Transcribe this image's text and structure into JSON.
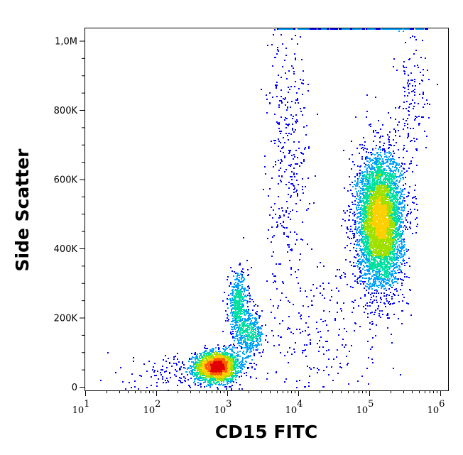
{
  "chart_data": {
    "type": "scatter",
    "subtype": "flow-cytometry density dot plot",
    "xlabel": "CD15 FITC",
    "ylabel": "Side Scatter",
    "x_scale": "log",
    "xlim": [
      10,
      1100000
    ],
    "ylim": [
      0,
      1050000
    ],
    "x_ticks": [
      {
        "value": 10,
        "base": "10",
        "exp": "1"
      },
      {
        "value": 100,
        "base": "10",
        "exp": "2"
      },
      {
        "value": 1000,
        "base": "10",
        "exp": "3"
      },
      {
        "value": 10000,
        "base": "10",
        "exp": "4"
      },
      {
        "value": 100000,
        "base": "10",
        "exp": "5"
      },
      {
        "value": 1000000,
        "base": "10",
        "exp": "6"
      }
    ],
    "y_ticks": [
      {
        "value": 0,
        "label": "0"
      },
      {
        "value": 200000,
        "label": "200K"
      },
      {
        "value": 400000,
        "label": "400K"
      },
      {
        "value": 600000,
        "label": "600K"
      },
      {
        "value": 800000,
        "label": "800K"
      },
      {
        "value": 1000000,
        "label": "1,0M"
      }
    ],
    "grid": false,
    "color_scale": [
      "#0000ff",
      "#00a0ff",
      "#00e0a0",
      "#a0e000",
      "#ffd000",
      "#ff6000",
      "#e00000"
    ],
    "populations": [
      {
        "x_center": 700,
        "y_center": 60000,
        "x_log_sd": 0.15,
        "y_sd": 22000,
        "count": 2400
      },
      {
        "x_center": 1400,
        "y_center": 240000,
        "x_log_sd": 0.07,
        "y_sd": 45000,
        "count": 500
      },
      {
        "x_center": 2000,
        "y_center": 150000,
        "x_log_sd": 0.1,
        "y_sd": 35000,
        "count": 450
      },
      {
        "x_center": 140000,
        "y_center": 480000,
        "x_log_sd": 0.16,
        "y_sd": 95000,
        "count": 5200
      },
      {
        "x_center": 7000,
        "y_center": 700000,
        "x_log_sd": 0.15,
        "y_sd": 200000,
        "count": 350
      },
      {
        "x_center": 400000,
        "y_center": 850000,
        "x_log_sd": 0.12,
        "y_sd": 120000,
        "count": 150
      },
      {
        "x_center": 20000,
        "y_center": 150000,
        "x_log_sd": 0.45,
        "y_sd": 120000,
        "count": 250
      },
      {
        "x_center": 200,
        "y_center": 40000,
        "x_log_sd": 0.35,
        "y_sd": 30000,
        "count": 150
      }
    ],
    "saturated_events": {
      "y": 1045000,
      "x_from": 5000,
      "x_to": 700000,
      "count": 250
    }
  }
}
